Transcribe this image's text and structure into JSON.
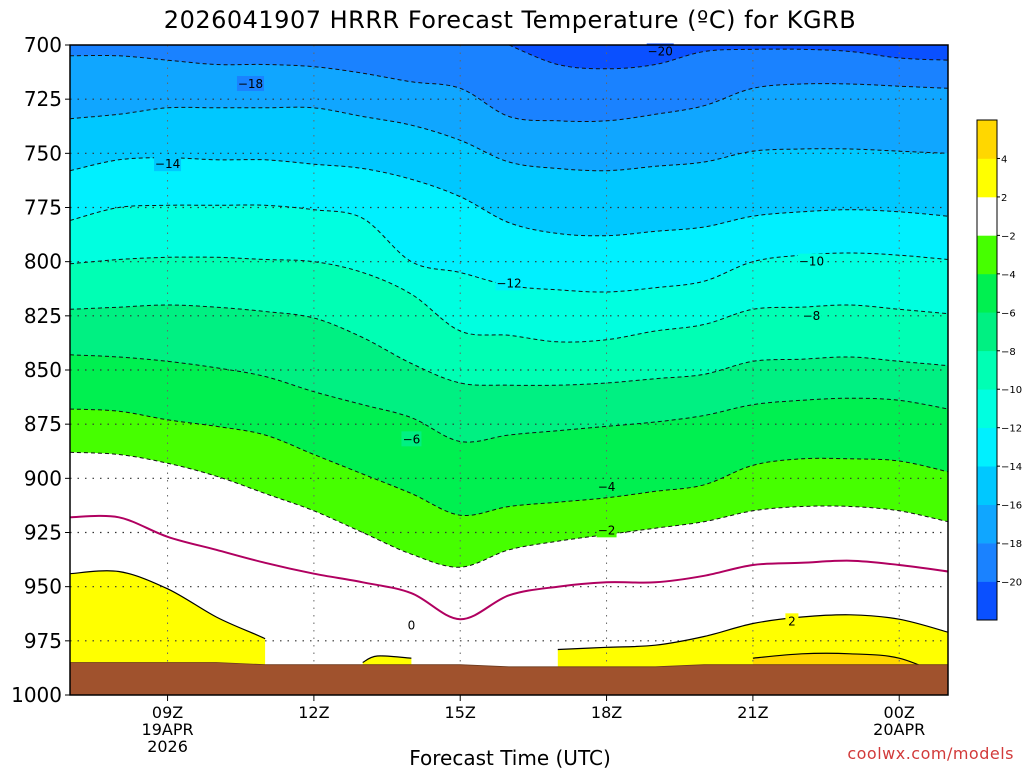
{
  "chart_data": {
    "type": "contour",
    "title": "2026041907 HRRR Forecast Temperature (ºC) for KGRB",
    "xlabel": "Forecast Time (UTC)",
    "ylabel": "",
    "credit": "coolwx.com/models",
    "x_unit": "hours since 07Z 19APR 2026",
    "xlim": [
      0,
      18
    ],
    "ylim": [
      1000,
      700
    ],
    "y_ticks": [
      700,
      725,
      750,
      775,
      800,
      825,
      850,
      875,
      900,
      925,
      950,
      975,
      1000
    ],
    "x_ticks": [
      {
        "x": 2,
        "lines": [
          "09Z",
          "19APR",
          "2026"
        ]
      },
      {
        "x": 5,
        "lines": [
          "12Z"
        ]
      },
      {
        "x": 8,
        "lines": [
          "15Z"
        ]
      },
      {
        "x": 11,
        "lines": [
          "18Z"
        ]
      },
      {
        "x": 14,
        "lines": [
          "21Z"
        ]
      },
      {
        "x": 17,
        "lines": [
          "00Z",
          "20APR"
        ]
      }
    ],
    "x": [
      0,
      1,
      2,
      3,
      4,
      5,
      6,
      7,
      8,
      9,
      10,
      11,
      12,
      13,
      14,
      15,
      16,
      17,
      18
    ],
    "surface_pressure": [
      985,
      985,
      985,
      985,
      986,
      986,
      986,
      986,
      986,
      987,
      987,
      987,
      987,
      986,
      986,
      986,
      986,
      986,
      986
    ],
    "colorbar": {
      "levels": [
        -22,
        -20,
        -18,
        -16,
        -14,
        -12,
        -10,
        -8,
        -6,
        -4,
        -2,
        2,
        4,
        6
      ],
      "colors": [
        "#0a50ff",
        "#1a82ff",
        "#10a6ff",
        "#00c8ff",
        "#00f0ff",
        "#00ffe0",
        "#00ffb4",
        "#00f082",
        "#00f050",
        "#46ff00",
        "#ffffff",
        "#ffff00",
        "#ffd700"
      ],
      "tick_labels": [
        "−20",
        "−18",
        "−16",
        "−14",
        "−12",
        "−10",
        "−8",
        "−6",
        "−4",
        "−2",
        "2",
        "4"
      ]
    },
    "contours": [
      {
        "level": -20,
        "pressure": [
          null,
          null,
          null,
          null,
          null,
          null,
          null,
          null,
          null,
          700,
          709,
          711,
          709,
          703,
          702,
          702,
          703,
          706,
          707
        ],
        "label": "−20",
        "label_at": [
          12.1,
          703
        ]
      },
      {
        "level": -18,
        "pressure": [
          705,
          705,
          707,
          709,
          709,
          710,
          713,
          717,
          720,
          733,
          735,
          735,
          732,
          728,
          720,
          718,
          718,
          719,
          720
        ],
        "label": "−18",
        "label_at": [
          3.7,
          718
        ]
      },
      {
        "level": -16,
        "pressure": [
          734,
          732,
          729,
          729,
          729,
          729,
          733,
          737,
          744,
          754,
          757,
          758,
          756,
          754,
          749,
          748,
          748,
          749,
          750
        ],
        "label": "",
        "label_at": []
      },
      {
        "level": -14,
        "pressure": [
          758,
          753,
          752,
          753,
          753,
          755,
          757,
          762,
          770,
          782,
          787,
          788,
          786,
          784,
          779,
          777,
          776,
          777,
          779
        ],
        "label": "−14",
        "label_at": [
          2.0,
          755
        ]
      },
      {
        "level": -12,
        "pressure": [
          781,
          775,
          774,
          774,
          774,
          776,
          780,
          800,
          805,
          811,
          813,
          814,
          812,
          809,
          800,
          797,
          796,
          797,
          799
        ],
        "label": "−12",
        "label_at": [
          9.0,
          810
        ]
      },
      {
        "level": -10,
        "pressure": [
          801,
          799,
          798,
          798,
          799,
          800,
          805,
          815,
          832,
          834,
          837,
          836,
          832,
          829,
          822,
          821,
          820,
          822,
          824
        ],
        "label": "−10",
        "label_at": [
          15.2,
          800
        ]
      },
      {
        "level": -8,
        "pressure": [
          822,
          821,
          820,
          821,
          823,
          826,
          835,
          847,
          856,
          857,
          857,
          856,
          854,
          852,
          846,
          845,
          844,
          846,
          848
        ],
        "label": "−8",
        "label_at": [
          15.2,
          825
        ]
      },
      {
        "level": -6,
        "pressure": [
          843,
          844,
          846,
          849,
          853,
          860,
          866,
          872,
          883,
          880,
          878,
          876,
          874,
          871,
          866,
          864,
          863,
          864,
          868
        ],
        "label": "−6",
        "label_at": [
          7.0,
          882
        ]
      },
      {
        "level": -4,
        "pressure": [
          868,
          869,
          873,
          876,
          880,
          889,
          898,
          907,
          917,
          913,
          911,
          909,
          906,
          903,
          894,
          891,
          891,
          892,
          897
        ],
        "label": "−4",
        "label_at": [
          11.0,
          904
        ]
      },
      {
        "level": -2,
        "pressure": [
          888,
          889,
          893,
          899,
          907,
          915,
          925,
          935,
          941,
          933,
          929,
          926,
          923,
          920,
          915,
          913,
          913,
          915,
          920
        ],
        "label": "−2",
        "label_at": [
          11.0,
          924
        ]
      },
      {
        "level": 0,
        "pressure": [
          918,
          918,
          927,
          933,
          939,
          944,
          948,
          953,
          965,
          954,
          950,
          948,
          948,
          945,
          940,
          939,
          938,
          940,
          943
        ],
        "label": "0",
        "label_at": [
          7.0,
          968
        ]
      },
      {
        "level": 2,
        "pressure": [
          null,
          null,
          null,
          null,
          null,
          null,
          null,
          null,
          null,
          null,
          979,
          978,
          977,
          973,
          967,
          964,
          963,
          965,
          971
        ],
        "label": "2",
        "label_at": [
          14.8,
          966
        ]
      },
      {
        "level": 4,
        "pressure": [
          null,
          null,
          null,
          null,
          null,
          null,
          null,
          null,
          null,
          null,
          null,
          null,
          null,
          null,
          983,
          981,
          981,
          983,
          992
        ],
        "label": "",
        "label_at": []
      }
    ],
    "warm_lobe": {
      "level": 2,
      "x": [
        0.0,
        1.0,
        2.0,
        3.0,
        3.8,
        4.0
      ],
      "top_pressure": [
        944,
        943,
        951,
        964,
        972,
        974
      ]
    },
    "warm_blip": {
      "x": [
        6.0,
        6.3,
        7.0
      ],
      "top_pressure": [
        985,
        982,
        983
      ]
    }
  }
}
